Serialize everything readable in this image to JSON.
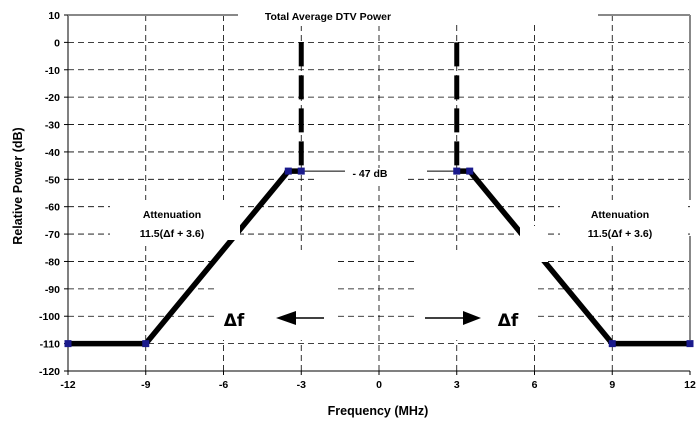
{
  "chart_data": {
    "type": "line",
    "title": "Total Average DTV  Power",
    "xlabel": "Frequency  (MHz)",
    "ylabel": "Relative Power  (dB)",
    "xlim": [
      -12,
      12
    ],
    "ylim": [
      -120,
      10
    ],
    "x_ticks": [
      "-12",
      "-9",
      "-6",
      "-3",
      "0",
      "3",
      "6",
      "9",
      "12"
    ],
    "y_ticks": [
      "10",
      "0",
      "-10",
      "-20",
      "-30",
      "-40",
      "-50",
      "-60",
      "-70",
      "-80",
      "-90",
      "-100",
      "-110",
      "-120"
    ],
    "grid": true,
    "series": [
      {
        "role": "lower adjacent channel mask",
        "points": [
          [
            -12,
            -110
          ],
          [
            -9,
            -110
          ],
          [
            -3.5,
            -47
          ],
          [
            -3,
            -47
          ]
        ]
      },
      {
        "role": "upper adjacent channel mask",
        "points": [
          [
            3,
            -47
          ],
          [
            3.5,
            -47
          ],
          [
            9,
            -110
          ],
          [
            12,
            -110
          ]
        ]
      }
    ],
    "vertical_markers": [
      -3,
      3
    ],
    "annotations": {
      "db_label": "- 47 dB",
      "attenuation_title": "Attenuation",
      "attenuation_formula": "11.5(Δf + 3.6)",
      "delta_f": "Δf"
    }
  }
}
